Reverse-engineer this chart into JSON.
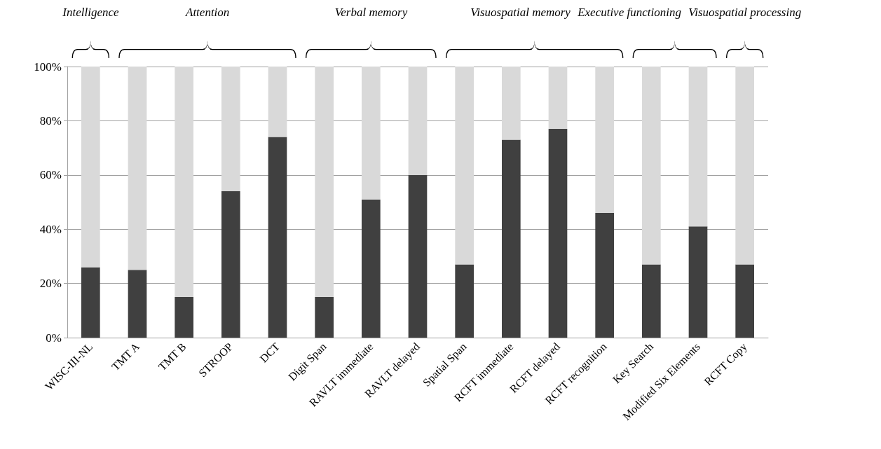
{
  "chart_data": {
    "type": "bar",
    "stacked": true,
    "categories": [
      "WISC-III-NL",
      "TMT A",
      "TMT B",
      "STROOP",
      "DCT",
      "Digit Span",
      "RAVLT immediate",
      "RAVLT delayed",
      "Spatial Span",
      "RCFT immediate",
      "RCFT delayed",
      "RCFT recognition",
      "Key Search",
      "Modified Six Elements",
      "RCFT Copy"
    ],
    "series": [
      {
        "color": "#404040",
        "values": [
          26,
          25,
          15,
          54,
          74,
          15,
          51,
          60,
          27,
          73,
          77,
          46,
          27,
          41,
          27
        ]
      },
      {
        "color": "#d9d9d9",
        "values": [
          74,
          75,
          85,
          46,
          26,
          85,
          49,
          40,
          73,
          27,
          23,
          54,
          73,
          59,
          73
        ]
      }
    ],
    "ylim": [
      0,
      100
    ],
    "yticks": [
      {
        "value": 0,
        "label": "0%"
      },
      {
        "value": 20,
        "label": "20%"
      },
      {
        "value": 40,
        "label": "40%"
      },
      {
        "value": 60,
        "label": "60%"
      },
      {
        "value": 80,
        "label": "80%"
      },
      {
        "value": 100,
        "label": "100%"
      }
    ],
    "grid": "y",
    "annotations": [
      "Intelligence",
      "Attention",
      "Verbal memory",
      "Visuospatial memory",
      "Executive functioning",
      "Visuospatial processing"
    ]
  }
}
